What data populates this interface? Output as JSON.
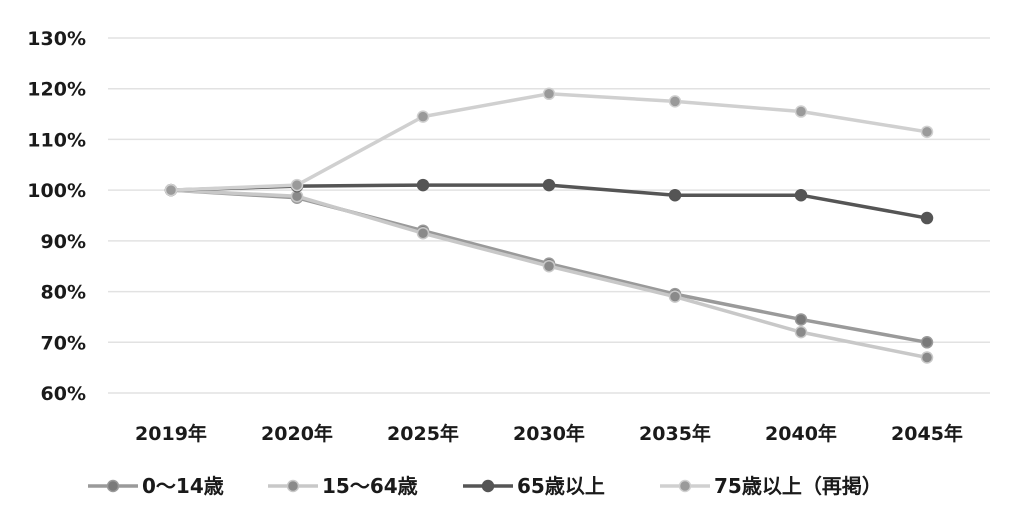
{
  "chart_data": {
    "type": "line",
    "categories": [
      "2019年",
      "2020年",
      "2025年",
      "2030年",
      "2035年",
      "2040年",
      "2045年"
    ],
    "ylim": [
      60,
      130
    ],
    "y_unit": "%",
    "y_ticks": [
      60,
      70,
      80,
      90,
      100,
      110,
      120,
      130
    ],
    "y_tick_labels": [
      "60%",
      "70%",
      "80%",
      "90%",
      "100%",
      "110%",
      "120%",
      "130%"
    ],
    "grid": true,
    "legend_position": "bottom",
    "series": [
      {
        "name": "0～14歳",
        "values": [
          100,
          98.5,
          92,
          85.5,
          79.5,
          74.5,
          70
        ],
        "color": "#9a9a9a",
        "marker": "#7a7a7a"
      },
      {
        "name": "15～64歳",
        "values": [
          100,
          98.8,
          91.5,
          85,
          79,
          72,
          67
        ],
        "color": "#c8c8c8",
        "marker": "#8a8a8a"
      },
      {
        "name": "65歳以上",
        "values": [
          100,
          100.8,
          101,
          101,
          99,
          99,
          94.5
        ],
        "color": "#555555",
        "marker": "#555555"
      },
      {
        "name": "75歳以上（再掲）",
        "values": [
          100,
          101,
          114.5,
          119,
          117.5,
          115.5,
          111.5
        ],
        "color": "#d0d0d0",
        "marker": "#9a9a9a"
      }
    ]
  }
}
